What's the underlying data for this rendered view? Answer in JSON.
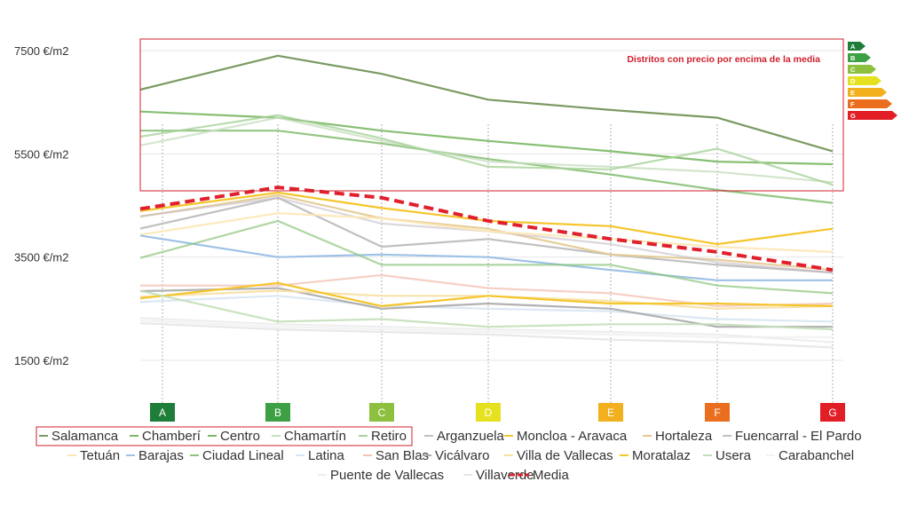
{
  "chart_data": {
    "type": "line",
    "title": "",
    "xlabel": "",
    "ylabel": "",
    "y_ticks": [
      {
        "value": 7500,
        "label": "7500 €/m2"
      },
      {
        "value": 5500,
        "label": "5500 €/m2"
      },
      {
        "value": 3500,
        "label": "3500 €/m2"
      },
      {
        "value": 1500,
        "label": "1500 €/m2"
      }
    ],
    "ylim": [
      1500,
      7500
    ],
    "grid": true,
    "annotation": "Distritos con precio por encima de la media",
    "annotation_color": "#d0202c",
    "x_points": 7,
    "series": [
      {
        "name": "Salamanca",
        "color": "#7a9a62",
        "dash": "solid",
        "opacity": 1,
        "values": [
          6850,
          7400,
          7050,
          6550,
          6350,
          6200,
          5550
        ]
      },
      {
        "name": "Chamberí",
        "color": "#7ab865",
        "dash": "solid",
        "opacity": 0.9,
        "values": [
          6300,
          6200,
          5950,
          5750,
          5550,
          5350,
          5300
        ]
      },
      {
        "name": "Centro",
        "color": "#7ab865",
        "dash": "solid",
        "opacity": 0.8,
        "values": [
          5950,
          5950,
          5700,
          5400,
          5100,
          4800,
          4550
        ]
      },
      {
        "name": "Chamartín",
        "color": "#c8dfc0",
        "dash": "solid",
        "opacity": 0.8,
        "values": [
          5750,
          6200,
          5750,
          5350,
          5250,
          5150,
          4950
        ]
      },
      {
        "name": "Retiro",
        "color": "#a7d29a",
        "dash": "solid",
        "opacity": 0.8,
        "values": [
          5900,
          6250,
          5800,
          5250,
          5200,
          5600,
          4900
        ]
      },
      {
        "name": "Arganzuela",
        "color": "#c0c0c0",
        "dash": "solid",
        "opacity": 1,
        "values": [
          4150,
          4650,
          3700,
          3850,
          3550,
          3350,
          3200
        ]
      },
      {
        "name": "Moncloa - Aravaca",
        "color": "#f5c52c",
        "dash": "solid",
        "opacity": 1,
        "values": [
          4450,
          4750,
          4450,
          4200,
          4100,
          3750,
          4050
        ]
      },
      {
        "name": "Hortaleza",
        "color": "#e3c98f",
        "dash": "solid",
        "opacity": 0.9,
        "values": [
          4350,
          4700,
          4250,
          4050,
          3550,
          3450,
          3250
        ]
      },
      {
        "name": "Fuencarral - El Pardo",
        "color": "#c7bcc7",
        "dash": "solid",
        "opacity": 0.6,
        "values": [
          4350,
          4650,
          4150,
          4000,
          3750,
          3400,
          3200
        ]
      },
      {
        "name": "Tetuán",
        "color": "#fde7b5",
        "dash": "solid",
        "opacity": 0.9,
        "values": [
          4000,
          4350,
          4250,
          4000,
          3850,
          3700,
          3600
        ]
      },
      {
        "name": "Barajas",
        "color": "#9ec1e6",
        "dash": "solid",
        "opacity": 1,
        "values": [
          3850,
          3500,
          3550,
          3500,
          3250,
          3050,
          3050
        ]
      },
      {
        "name": "Ciudad Lineal",
        "color": "#8cc47a",
        "dash": "solid",
        "opacity": 0.7,
        "values": [
          3600,
          4200,
          3350,
          3350,
          3350,
          2950,
          2800
        ]
      },
      {
        "name": "Latina",
        "color": "#d7e6f2",
        "dash": "solid",
        "opacity": 0.9,
        "values": [
          2650,
          2750,
          2550,
          2500,
          2450,
          2300,
          2250
        ]
      },
      {
        "name": "San Blas",
        "color": "#f2c4b5",
        "dash": "solid",
        "opacity": 0.8,
        "values": [
          2950,
          2950,
          3150,
          2900,
          2800,
          2550,
          2600
        ]
      },
      {
        "name": "Vicálvaro",
        "color": "#a9a9a9",
        "dash": "solid",
        "opacity": 0.9,
        "values": [
          2850,
          2900,
          2500,
          2600,
          2500,
          2150,
          2150
        ]
      },
      {
        "name": "Villa de Vallecas",
        "color": "#f7dfa0",
        "dash": "solid",
        "opacity": 0.9,
        "values": [
          2750,
          2850,
          2750,
          2750,
          2650,
          2500,
          2550
        ]
      },
      {
        "name": "Moratalaz",
        "color": "#f5c52c",
        "dash": "solid",
        "opacity": 1,
        "values": [
          2750,
          3000,
          2550,
          2750,
          2600,
          2600,
          2550
        ]
      },
      {
        "name": "Usera",
        "color": "#c4dfb8",
        "dash": "solid",
        "opacity": 0.9,
        "values": [
          2750,
          2250,
          2300,
          2150,
          2200,
          2200,
          2100
        ]
      },
      {
        "name": "Carabanchel",
        "color": "#f2f2f2",
        "dash": "solid",
        "opacity": 1,
        "values": [
          2250,
          2150,
          2100,
          2050,
          2000,
          1950,
          1950
        ]
      },
      {
        "name": "Puente de Vallecas",
        "color": "#eeeeee",
        "dash": "solid",
        "opacity": 1,
        "values": [
          2300,
          2200,
          2150,
          2100,
          2050,
          2000,
          1850
        ]
      },
      {
        "name": "Villaverde",
        "color": "#e8e8e8",
        "dash": "solid",
        "opacity": 1,
        "values": [
          2200,
          2100,
          2050,
          2000,
          1900,
          1850,
          1750
        ]
      },
      {
        "name": "Media",
        "color": "#e0202c",
        "dash": "dashed",
        "opacity": 1,
        "values": [
          4500,
          4850,
          4650,
          4200,
          3850,
          3600,
          3250
        ]
      }
    ],
    "highlighted_legend": [
      "Salamanca",
      "Chamberí",
      "Centro",
      "Chamartín",
      "Retiro"
    ],
    "energy_labels": [
      {
        "letter": "A",
        "color": "#1f7d3a"
      },
      {
        "letter": "B",
        "color": "#3ea044"
      },
      {
        "letter": "C",
        "color": "#8dc03f"
      },
      {
        "letter": "D",
        "color": "#e6e11e"
      },
      {
        "letter": "E",
        "color": "#f2b01e"
      },
      {
        "letter": "F",
        "color": "#eb6e1f"
      },
      {
        "letter": "G",
        "color": "#e21f26"
      }
    ]
  }
}
